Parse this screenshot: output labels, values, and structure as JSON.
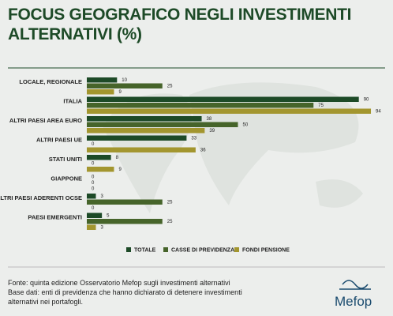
{
  "chart_data": {
    "type": "bar",
    "orientation": "horizontal",
    "title": [
      "FOCUS GEOGRAFICO NEGLI INVESTIMENTI",
      "ALTERNATIVI (%)"
    ],
    "categories": [
      "LOCALE, REGIONALE",
      "ITALIA",
      "ALTRI PAESI AREA EURO",
      "ALTRI PAESI UE",
      "STATI UNITI",
      "GIAPPONE",
      "ALTRI PAESI ADERENTI OCSE",
      "PAESI EMERGENTI"
    ],
    "series": [
      {
        "name": "TOTALE",
        "color": "#1d4a27",
        "values": [
          10,
          90,
          38,
          33,
          8,
          0,
          3,
          5
        ]
      },
      {
        "name": "CASSE DI PREVIDENZA",
        "color": "#46642a",
        "values": [
          25,
          75,
          50,
          0,
          0,
          0,
          25,
          25
        ]
      },
      {
        "name": "FONDI PENSIONE",
        "color": "#a3962f",
        "values": [
          9,
          94,
          39,
          36,
          9,
          0,
          0,
          3
        ]
      }
    ],
    "xlim": [
      0,
      100
    ],
    "source": "Fonte: quinta edizione Osservatorio Mefop sugli investimenti alternativi",
    "note": "Base dati: enti di previdenza che hanno dichiarato di detenere investimenti alternativi nei portafogli.",
    "brand": "Mefop"
  }
}
